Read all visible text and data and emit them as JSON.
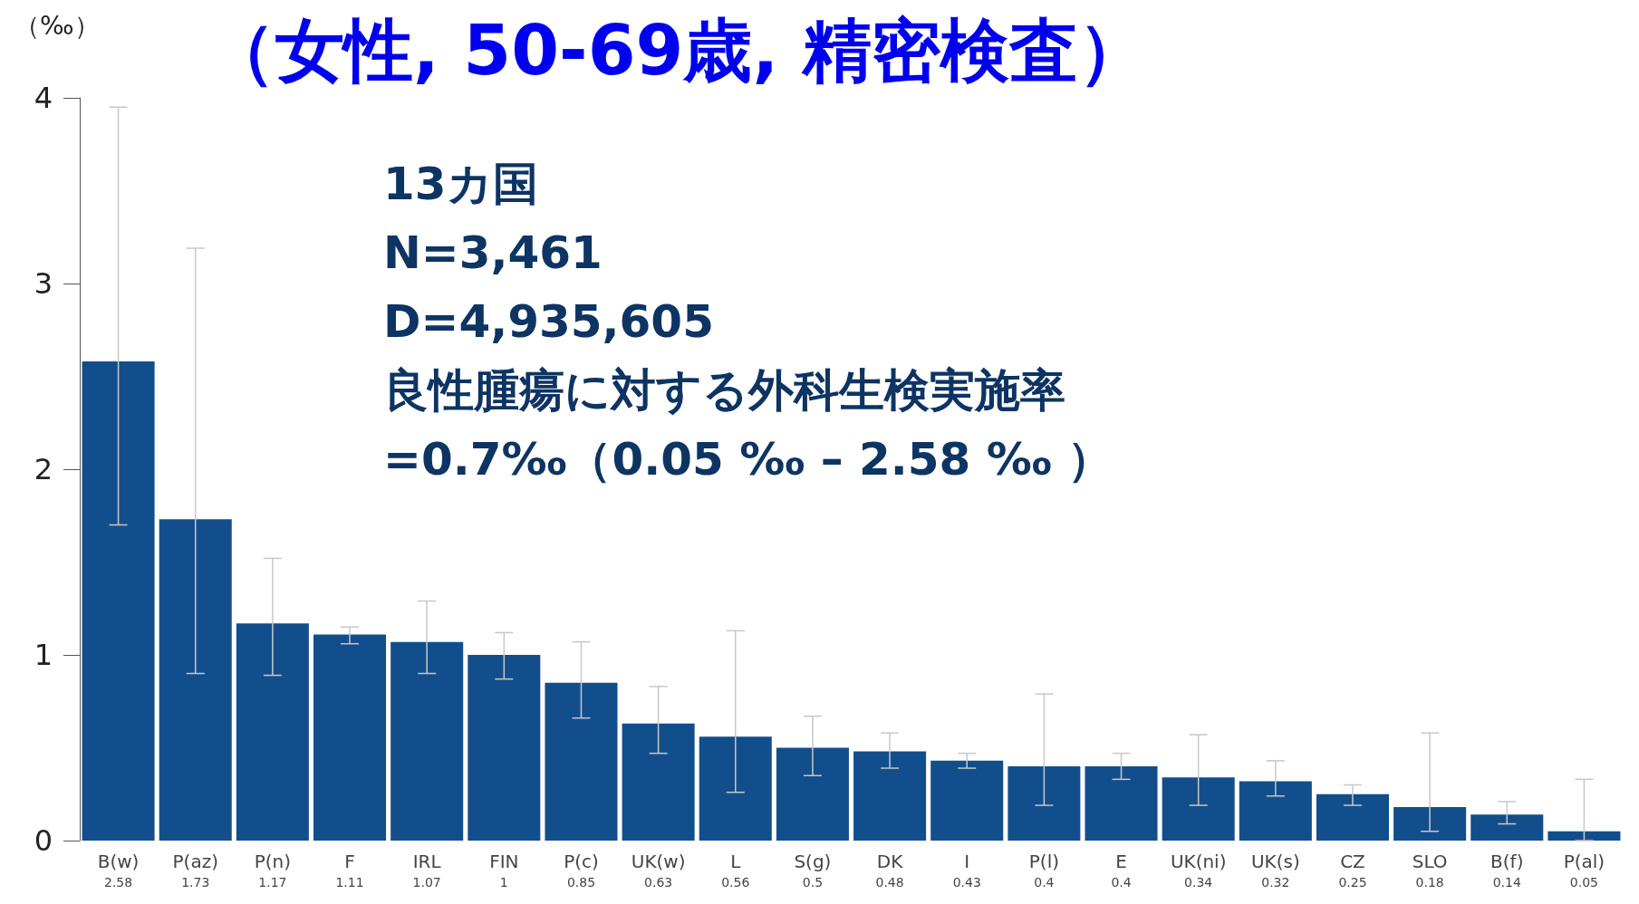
{
  "chart_data": {
    "type": "bar",
    "title": "（女性, 50-69歳, 精密検査）",
    "ylabel": "（‰）",
    "categories": [
      "B(w)",
      "P(az)",
      "P(n)",
      "F",
      "IRL",
      "FIN",
      "P(c)",
      "UK(w)",
      "L",
      "S(g)",
      "DK",
      "I",
      "P(l)",
      "E",
      "UK(ni)",
      "UK(s)",
      "CZ",
      "SLO",
      "B(f)",
      "P(al)"
    ],
    "values": [
      2.58,
      1.73,
      1.17,
      1.11,
      1.07,
      1,
      0.85,
      0.63,
      0.56,
      0.5,
      0.48,
      0.43,
      0.4,
      0.4,
      0.34,
      0.32,
      0.25,
      0.18,
      0.14,
      0.05
    ],
    "errors": [
      [
        1.7,
        3.95
      ],
      [
        0.9,
        3.19
      ],
      [
        0.89,
        1.52
      ],
      [
        1.06,
        1.15
      ],
      [
        0.9,
        1.29
      ],
      [
        0.87,
        1.12
      ],
      [
        0.66,
        1.07
      ],
      [
        0.47,
        0.83
      ],
      [
        0.26,
        1.13
      ],
      [
        0.35,
        0.67
      ],
      [
        0.39,
        0.58
      ],
      [
        0.39,
        0.47
      ],
      [
        0.19,
        0.79
      ],
      [
        0.33,
        0.47
      ],
      [
        0.19,
        0.57
      ],
      [
        0.24,
        0.43
      ],
      [
        0.19,
        0.3
      ],
      [
        0.05,
        0.58
      ],
      [
        0.09,
        0.21
      ],
      [
        0,
        0.33
      ]
    ],
    "color": "#134e8c",
    "data_labels": true,
    "grid": false,
    "ylim": [
      0,
      4
    ],
    "yticks": [
      0,
      1,
      2,
      3,
      4
    ],
    "annotations": [
      "13カ国",
      "N=3,461",
      "D=4,935,605",
      "良性腫瘍に対する外科生検実施率",
      "=0.7‰（0.05 ‰ – 2.58 ‰ ）"
    ]
  }
}
